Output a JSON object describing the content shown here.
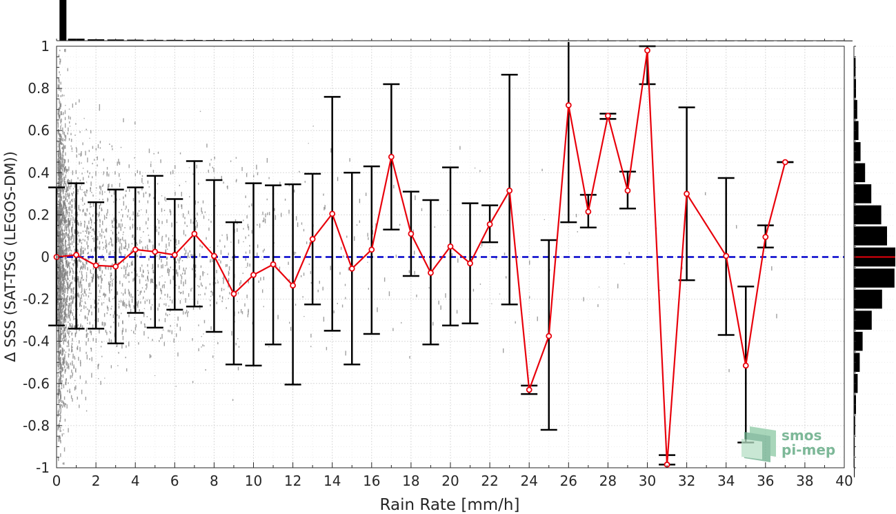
{
  "chart_data": {
    "type": "scatter",
    "title": "",
    "xlabel": "Rain Rate [mm/h]",
    "ylabel": "Δ SSS (SAT-TSG (LEGOS-DM))",
    "xlim": [
      0,
      40
    ],
    "ylim": [
      -1,
      1
    ],
    "xticks": [
      "0",
      "2",
      "4",
      "6",
      "8",
      "10",
      "12",
      "14",
      "16",
      "18",
      "20",
      "22",
      "24",
      "26",
      "28",
      "30",
      "32",
      "34",
      "36",
      "38",
      "40"
    ],
    "yticks": [
      "-1",
      "-0.8",
      "-0.6",
      "-0.4",
      "-0.2",
      "0",
      "0.2",
      "0.4",
      "0.6",
      "0.8",
      "1"
    ],
    "grid": true,
    "colors": {
      "mean_line": "#e8000b",
      "zero_line": "#0000cc",
      "error_bars": "#000000",
      "scatter": "#808080",
      "histogram": "#000000",
      "logo": "#6aad8a"
    },
    "series": [
      {
        "kind": "line",
        "x": [
          0,
          1,
          2,
          3,
          4,
          5,
          6,
          7,
          8,
          9,
          10,
          11,
          12,
          13,
          14,
          15,
          16,
          17,
          18,
          19,
          20,
          21,
          22,
          23,
          24,
          25,
          26,
          27,
          28,
          29,
          30,
          31,
          32,
          34,
          35,
          36,
          37
        ],
        "values": [
          0.0,
          0.01,
          -0.04,
          -0.045,
          0.035,
          0.025,
          0.01,
          0.11,
          0.005,
          -0.175,
          -0.085,
          -0.035,
          -0.135,
          0.085,
          0.205,
          -0.055,
          0.035,
          0.475,
          0.11,
          -0.075,
          0.05,
          -0.03,
          0.155,
          0.315,
          -0.63,
          -0.375,
          0.72,
          0.215,
          0.67,
          0.315,
          0.98,
          -0.985,
          0.3,
          0.005,
          -0.515,
          0.095,
          0.45
        ]
      },
      {
        "kind": "errorbar",
        "x": [
          0,
          1,
          2,
          3,
          4,
          5,
          6,
          7,
          8,
          9,
          10,
          11,
          12,
          13,
          14,
          15,
          16,
          17,
          18,
          19,
          20,
          21,
          22,
          23,
          24,
          25,
          26,
          27,
          28,
          29,
          30,
          31,
          32,
          34,
          35,
          36,
          37
        ],
        "upper": [
          0.33,
          0.35,
          0.26,
          0.32,
          0.33,
          0.385,
          0.275,
          0.455,
          0.365,
          0.165,
          0.35,
          0.34,
          0.345,
          0.395,
          0.76,
          0.4,
          0.43,
          0.82,
          0.31,
          0.27,
          0.425,
          0.255,
          0.245,
          0.865,
          -0.61,
          0.08,
          1.03,
          0.295,
          0.68,
          0.405,
          1.0,
          -0.94,
          0.71,
          0.375,
          -0.14,
          0.15,
          0.45
        ],
        "lower": [
          -0.325,
          -0.34,
          -0.34,
          -0.41,
          -0.265,
          -0.335,
          -0.25,
          -0.235,
          -0.355,
          -0.51,
          -0.515,
          -0.415,
          -0.605,
          -0.225,
          -0.35,
          -0.51,
          -0.365,
          0.13,
          -0.09,
          -0.415,
          -0.325,
          -0.315,
          0.07,
          -0.225,
          -0.65,
          -0.82,
          0.165,
          0.14,
          0.655,
          0.23,
          0.82,
          -0.985,
          -0.11,
          -0.37,
          -0.88,
          0.045,
          0.45
        ]
      },
      {
        "kind": "reference",
        "y": 0
      }
    ],
    "scatter_density": {
      "x": [
        0.1,
        0.3,
        0.6,
        1.0,
        1.5,
        2.0,
        2.5,
        3.0,
        3.5,
        4.0,
        4.5,
        5.0,
        5.5,
        6.0,
        6.5,
        7.0,
        7.5,
        8.0,
        8.5,
        9.0,
        9.5,
        10.0,
        11.0,
        12.0,
        13.0,
        14.0,
        15.0,
        16.0,
        17.0,
        18.0,
        19.0,
        20.0,
        21.0,
        22.0,
        23.0,
        24.0,
        25.0,
        26.0,
        27.0,
        28.0,
        29.0,
        30.0,
        31.0,
        32.0,
        33.0,
        34.0,
        35.0,
        36.0,
        37.0
      ],
      "count": [
        900,
        500,
        300,
        200,
        150,
        120,
        100,
        90,
        80,
        70,
        65,
        60,
        55,
        50,
        45,
        40,
        36,
        33,
        30,
        28,
        26,
        24,
        20,
        18,
        16,
        14,
        12,
        10,
        8,
        7,
        6,
        6,
        5,
        5,
        4,
        3,
        3,
        2,
        2,
        2,
        2,
        1,
        1,
        1,
        1,
        1,
        1,
        1,
        1
      ],
      "spread": [
        0.55,
        0.5,
        0.45,
        0.42,
        0.4,
        0.38,
        0.36,
        0.35,
        0.35,
        0.34,
        0.34,
        0.34,
        0.34,
        0.34,
        0.34,
        0.34,
        0.34,
        0.34,
        0.34,
        0.34,
        0.34,
        0.34,
        0.34,
        0.34,
        0.34,
        0.34,
        0.34,
        0.34,
        0.34,
        0.34,
        0.34,
        0.34,
        0.34,
        0.34,
        0.34,
        0.34,
        0.34,
        0.34,
        0.34,
        0.34,
        0.34,
        0.34,
        0.34,
        0.34,
        0.34,
        0.34,
        0.34,
        0.34,
        0.34
      ]
    },
    "histogram_top": {
      "x": [
        0.15,
        1.0,
        2.0,
        3.0,
        4.0,
        5.0,
        6.0,
        7.0,
        8.0,
        9.0,
        10.0,
        11.0,
        12.0,
        13.0,
        14.0,
        15.0,
        16.0,
        17.0,
        18.0,
        19.0,
        20.0,
        21.0,
        22.0,
        23.0,
        24.0,
        25.0,
        26.0,
        27.0,
        28.0,
        29.0,
        30.0,
        31.0,
        32.0,
        33.0,
        34.0,
        35.0,
        36.0,
        37.0,
        38.0,
        39.0,
        40.0
      ],
      "counts": [
        1.0,
        0.05,
        0.035,
        0.03,
        0.025,
        0.02,
        0.02,
        0.018,
        0.016,
        0.015,
        0.014,
        0.013,
        0.012,
        0.011,
        0.01,
        0.01,
        0.009,
        0.009,
        0.008,
        0.008,
        0.008,
        0.007,
        0.007,
        0.007,
        0.006,
        0.006,
        0.006,
        0.006,
        0.005,
        0.005,
        0.005,
        0.005,
        0.005,
        0.005,
        0.005,
        0.005,
        0.005,
        0.005,
        0.005,
        0.005,
        0.005
      ]
    },
    "histogram_right": {
      "y": [
        -1.0,
        -0.9,
        -0.8,
        -0.7,
        -0.6,
        -0.5,
        -0.4,
        -0.3,
        -0.2,
        -0.1,
        0.0,
        0.1,
        0.2,
        0.3,
        0.4,
        0.5,
        0.6,
        0.7,
        0.8,
        0.9
      ],
      "counts": [
        0.01,
        0.02,
        0.03,
        0.05,
        0.09,
        0.14,
        0.21,
        0.43,
        0.68,
        0.98,
        1.0,
        0.8,
        0.66,
        0.42,
        0.27,
        0.16,
        0.11,
        0.08,
        0.05,
        0.04
      ]
    },
    "logo_text": [
      "smos",
      "pi-mep"
    ]
  }
}
